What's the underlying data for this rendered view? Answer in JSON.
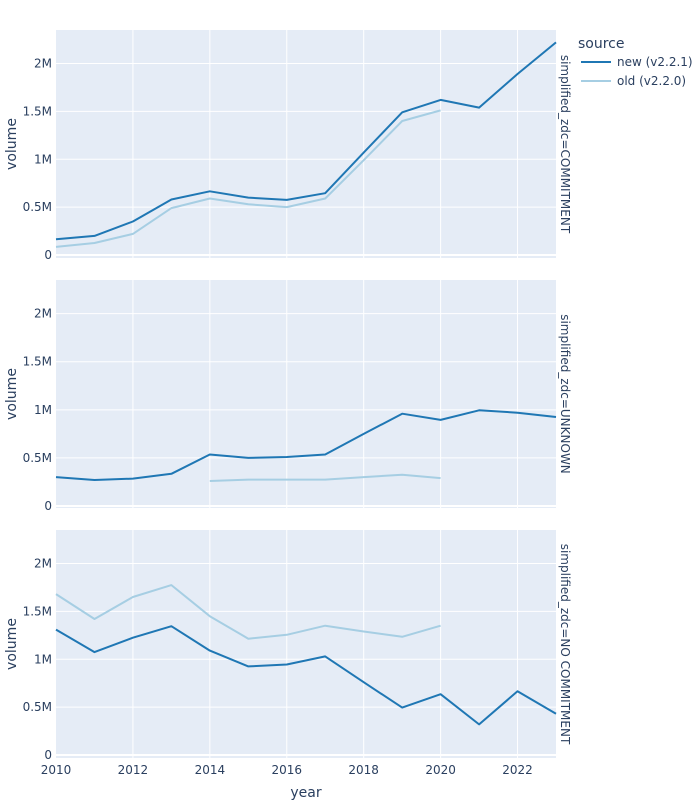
{
  "chart_data": {
    "type": "line",
    "layout": "facet-rows",
    "xlabel": "year",
    "ylabel": "volume",
    "xlim": [
      2010,
      2023
    ],
    "ylim": [
      0,
      2350000
    ],
    "x_ticks": [
      2010,
      2012,
      2014,
      2016,
      2018,
      2020,
      2022
    ],
    "x_tick_labels": [
      "2010",
      "2012",
      "2014",
      "2016",
      "2018",
      "2020",
      "2022"
    ],
    "y_ticks": [
      0,
      500000,
      1000000,
      1500000,
      2000000
    ],
    "y_tick_labels": [
      "0",
      "0.5M",
      "1M",
      "1.5M",
      "2M"
    ],
    "grid": true,
    "legend": {
      "title": "source",
      "placement": "top-right",
      "entries": [
        {
          "name": "new (v2.2.1)",
          "color": "#1f77b4"
        },
        {
          "name": "old (v2.2.0)",
          "color": "#a6cee3"
        }
      ]
    },
    "colors": {
      "new": "#1f77b4",
      "old": "#a6cee3",
      "plot_bg": "#e5ecf6",
      "grid": "#ffffff",
      "text": "#2a3f5f"
    },
    "facets": [
      {
        "label": "simplified_zdc=COMMITMENT",
        "series": [
          {
            "name": "new (v2.2.1)",
            "x": [
              2010,
              2011,
              2012,
              2013,
              2014,
              2015,
              2016,
              2017,
              2018,
              2019,
              2020,
              2021,
              2022,
              2023
            ],
            "y": [
              165000,
              200000,
              350000,
              580000,
              665000,
              600000,
              575000,
              645000,
              1070000,
              1490000,
              1620000,
              1540000,
              1890000,
              2220000
            ]
          },
          {
            "name": "old (v2.2.0)",
            "x": [
              2010,
              2011,
              2012,
              2013,
              2014,
              2015,
              2016,
              2017,
              2018,
              2019,
              2020
            ],
            "y": [
              85000,
              125000,
              220000,
              490000,
              590000,
              530000,
              500000,
              590000,
              990000,
              1400000,
              1510000
            ]
          }
        ]
      },
      {
        "label": "simplified_zdc=UNKNOWN",
        "series": [
          {
            "name": "new (v2.2.1)",
            "x": [
              2010,
              2011,
              2012,
              2013,
              2014,
              2015,
              2016,
              2017,
              2018,
              2019,
              2020,
              2021,
              2022,
              2023
            ],
            "y": [
              300000,
              270000,
              285000,
              335000,
              535000,
              500000,
              510000,
              535000,
              750000,
              960000,
              895000,
              995000,
              970000,
              925000
            ]
          },
          {
            "name": "old (v2.2.0)",
            "x": [
              2014,
              2015,
              2016,
              2017,
              2018,
              2019,
              2020
            ],
            "y": [
              260000,
              275000,
              275000,
              275000,
              300000,
              325000,
              290000
            ]
          }
        ]
      },
      {
        "label": "simplified_zdc=NO COMMITMENT",
        "series": [
          {
            "name": "new (v2.2.1)",
            "x": [
              2010,
              2011,
              2012,
              2013,
              2014,
              2015,
              2016,
              2017,
              2018,
              2019,
              2020,
              2021,
              2022,
              2023
            ],
            "y": [
              1310000,
              1075000,
              1225000,
              1345000,
              1090000,
              925000,
              945000,
              1030000,
              760000,
              495000,
              635000,
              320000,
              665000,
              430000
            ]
          },
          {
            "name": "old (v2.2.0)",
            "x": [
              2010,
              2011,
              2012,
              2013,
              2014,
              2015,
              2016,
              2017,
              2018,
              2019,
              2020
            ],
            "y": [
              1680000,
              1420000,
              1650000,
              1775000,
              1450000,
              1215000,
              1255000,
              1350000,
              1290000,
              1235000,
              1350000
            ]
          }
        ]
      }
    ]
  }
}
